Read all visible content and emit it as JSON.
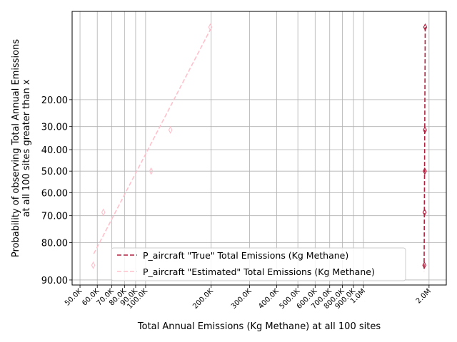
{
  "chart_data": {
    "type": "line",
    "xlabel": "Total Annual Emissions (Kg Methane) at all 100 sites",
    "ylabel": [
      "Probability of observing Total Annual Emissions",
      "at all 100 sites greater than x"
    ],
    "x_scale": "log",
    "y_scale": "probit",
    "xlim": [
      46000,
      2400000
    ],
    "ylim": [
      91,
      3
    ],
    "x_ticks": [
      {
        "value": 50000,
        "label": "50.0K"
      },
      {
        "value": 60000,
        "label": "60.0K"
      },
      {
        "value": 70000,
        "label": "70.0K"
      },
      {
        "value": 80000,
        "label": "80.0K"
      },
      {
        "value": 90000,
        "label": "90.0K"
      },
      {
        "value": 100000,
        "label": "100.0K"
      },
      {
        "value": 200000,
        "label": "200.0K"
      },
      {
        "value": 300000,
        "label": "300.0K"
      },
      {
        "value": 400000,
        "label": "400.0K"
      },
      {
        "value": 500000,
        "label": "500.0K"
      },
      {
        "value": 600000,
        "label": "600.0K"
      },
      {
        "value": 700000,
        "label": "700.0K"
      },
      {
        "value": 800000,
        "label": "800.0K"
      },
      {
        "value": 900000,
        "label": "900.0K"
      },
      {
        "value": 1000000,
        "label": "1.0M"
      },
      {
        "value": 2000000,
        "label": "2.0M"
      }
    ],
    "y_ticks": [
      {
        "value": 20,
        "label": "20.00"
      },
      {
        "value": 30,
        "label": "30.00"
      },
      {
        "value": 40,
        "label": "40.00"
      },
      {
        "value": 50,
        "label": "50.00"
      },
      {
        "value": 60,
        "label": "60.00"
      },
      {
        "value": 70,
        "label": "70.00"
      },
      {
        "value": 80,
        "label": "80.00"
      },
      {
        "value": 90,
        "label": "90.00"
      }
    ],
    "grid": true,
    "legend_position": "lower-right",
    "series": [
      {
        "name": "P_aircraft \"True\" Total Emissions (Kg Methane)",
        "color": "#b0203f",
        "line_style": "dashed",
        "marker": "thin-diamond",
        "points": [
          {
            "x": 1920000,
            "y": 4.5
          },
          {
            "x": 1915000,
            "y": 31.4
          },
          {
            "x": 1912000,
            "y": 50.0
          },
          {
            "x": 1908000,
            "y": 68.6
          },
          {
            "x": 1903000,
            "y": 86.6
          }
        ],
        "line": [
          {
            "x": 1921000,
            "y": 4.5
          },
          {
            "x": 1898000,
            "y": 88.0
          }
        ]
      },
      {
        "name": "P_aircraft \"Estimated\" Total Emissions (Kg Methane)",
        "color": "#ffc0cb",
        "line_style": "dashed",
        "marker": "thin-diamond",
        "points": [
          {
            "x": 198000,
            "y": 4.5
          },
          {
            "x": 130000,
            "y": 31.4
          },
          {
            "x": 106000,
            "y": 50.0
          },
          {
            "x": 64000,
            "y": 68.6
          },
          {
            "x": 57500,
            "y": 86.6
          }
        ],
        "line": [
          {
            "x": 57800,
            "y": 83.5
          },
          {
            "x": 198000,
            "y": 4.8
          }
        ]
      }
    ]
  }
}
